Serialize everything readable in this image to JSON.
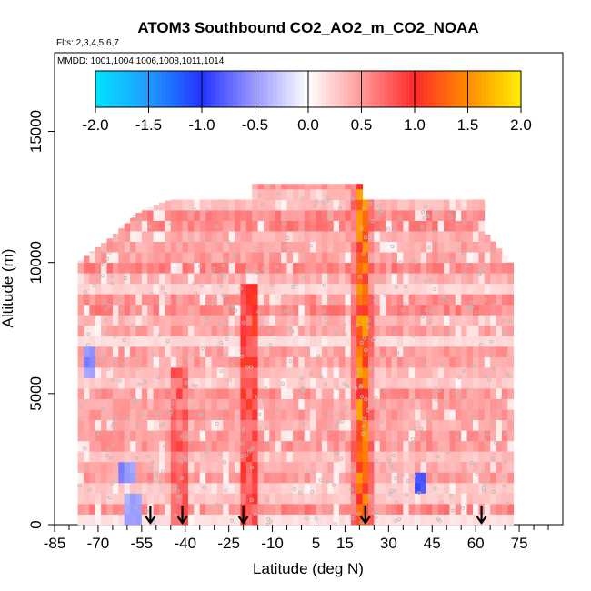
{
  "chart_data": {
    "type": "heatmap",
    "title": "ATOM3 Southbound CO2_AO2_m_CO2_NOAA",
    "subtitle_flights": "Flts: 2,3,4,5,6,7",
    "subtitle_dates": "MMDD: 1001,1004,1006,1008,1011,1014",
    "xlabel": "Latitude (deg N)",
    "ylabel": "Altitude (m)",
    "xlim": [
      -85,
      90
    ],
    "ylim": [
      0,
      18000
    ],
    "x_ticks_labeled": [
      "-85",
      "-70",
      "-55",
      "-40",
      "-25",
      "-10",
      "5",
      "15",
      "30",
      "45",
      "60",
      "75"
    ],
    "x_tick_values": [
      -85,
      -70,
      -55,
      -40,
      -25,
      -10,
      5,
      15,
      30,
      45,
      60,
      75
    ],
    "x_minor_ticks": [
      -80,
      -75,
      -65,
      -60,
      -50,
      -45,
      -35,
      -30,
      -20,
      -15,
      -5,
      0,
      10,
      20,
      25,
      35,
      40,
      50,
      55,
      65,
      70,
      80,
      85
    ],
    "y_ticks": [
      0,
      5000,
      10000,
      15000
    ],
    "y_tick_labels": [
      "0",
      "5000",
      "10000",
      "15000"
    ],
    "colorbar": {
      "range": [
        -2.0,
        2.0
      ],
      "tick_labels": [
        "-2.0",
        "-1.5",
        "-1.0",
        "-0.5",
        "0.0",
        "0.5",
        "1.0",
        "1.5",
        "2.0"
      ],
      "tick_values": [
        -2.0,
        -1.5,
        -1.0,
        -0.5,
        0.0,
        0.5,
        1.0,
        1.5,
        2.0
      ],
      "color_stops": [
        {
          "v": -2.0,
          "color": "#00e5ff"
        },
        {
          "v": -1.5,
          "color": "#1f9bff"
        },
        {
          "v": -1.0,
          "color": "#2233ff"
        },
        {
          "v": -0.5,
          "color": "#9999ff"
        },
        {
          "v": 0.0,
          "color": "#ffffff"
        },
        {
          "v": 0.5,
          "color": "#ff9999"
        },
        {
          "v": 1.0,
          "color": "#ff2a2a"
        },
        {
          "v": 1.5,
          "color": "#ff8c00"
        },
        {
          "v": 2.0,
          "color": "#ffee00"
        }
      ]
    },
    "domain": {
      "lat_min": -77,
      "lat_max": 72,
      "profile": [
        {
          "lat": -77,
          "top": 10000
        },
        {
          "lat": -65,
          "top": 11000
        },
        {
          "lat": -60,
          "top": 11500
        },
        {
          "lat": -55,
          "top": 12000
        },
        {
          "lat": -45,
          "top": 12400
        },
        {
          "lat": -18,
          "top": 12400
        },
        {
          "lat": -18,
          "top": 13000
        },
        {
          "lat": 21,
          "top": 13000
        },
        {
          "lat": 21,
          "top": 12400
        },
        {
          "lat": 62,
          "top": 12400
        },
        {
          "lat": 63,
          "top": 11200
        },
        {
          "lat": 72,
          "top": 10000
        }
      ]
    },
    "background_anomaly": 0.45,
    "enhanced_columns": [
      {
        "lat": 21,
        "half_width": 2.5,
        "alt_min": 0,
        "alt_max": 13000,
        "value": 1.3
      },
      {
        "lat": -18,
        "half_width": 2.0,
        "alt_min": 0,
        "alt_max": 9000,
        "value": 0.9
      },
      {
        "lat": -42,
        "half_width": 2.0,
        "alt_min": 0,
        "alt_max": 6000,
        "value": 0.75
      }
    ],
    "negative_patches": [
      {
        "lat": -60,
        "alt": 1800,
        "value": -0.6
      },
      {
        "lat": -73,
        "alt": 6000,
        "value": -0.6
      },
      {
        "lat": 41,
        "alt": 1300,
        "value": -0.9
      },
      {
        "lat": -58,
        "alt": 400,
        "value": -0.5
      }
    ],
    "arrow_latitudes": [
      -52,
      -41,
      -20,
      22,
      62
    ]
  }
}
